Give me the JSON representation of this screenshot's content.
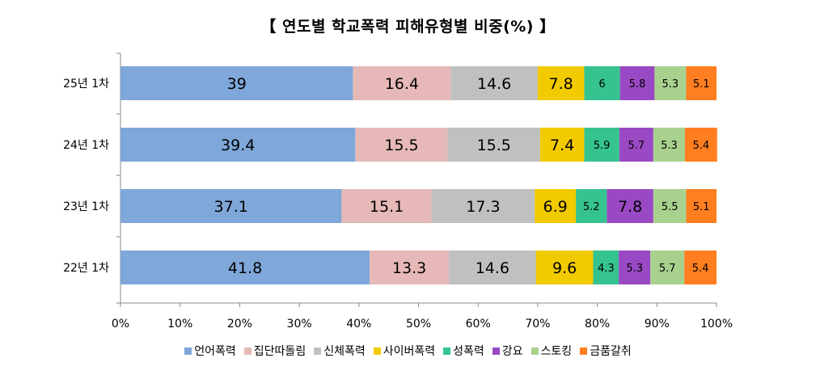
{
  "chart_data": {
    "type": "bar",
    "orientation": "horizontal",
    "stacked": true,
    "title": "【 연도별 학교폭력 피해유형별 비중(%) 】",
    "categories": [
      "25년 1차",
      "24년 1차",
      "23년 1차",
      "22년 1차"
    ],
    "series": [
      {
        "name": "언어폭력",
        "color": "#7FA7D9",
        "values": [
          39,
          39.4,
          37.1,
          41.8
        ]
      },
      {
        "name": "집단따돌림",
        "color": "#E6B9B8",
        "values": [
          16.4,
          15.5,
          15.1,
          13.3
        ]
      },
      {
        "name": "신체폭력",
        "color": "#C0C0C0",
        "values": [
          14.6,
          15.5,
          17.3,
          14.6
        ]
      },
      {
        "name": "사이버폭력",
        "color": "#F2CA00",
        "values": [
          7.8,
          7.4,
          6.9,
          9.6
        ]
      },
      {
        "name": "성폭력",
        "color": "#35C38F",
        "values": [
          6,
          5.9,
          5.2,
          4.3
        ]
      },
      {
        "name": "강요",
        "color": "#9A49C4",
        "values": [
          5.8,
          5.7,
          7.8,
          5.3
        ]
      },
      {
        "name": "스토킹",
        "color": "#A9D18E",
        "values": [
          5.3,
          5.3,
          5.5,
          5.7
        ]
      },
      {
        "name": "금품갈취",
        "color": "#FF7E1F",
        "values": [
          5.1,
          5.4,
          5.1,
          5.4
        ]
      }
    ],
    "xlim": [
      0,
      100
    ],
    "xticks": [
      "0%",
      "10%",
      "20%",
      "30%",
      "40%",
      "50%",
      "60%",
      "70%",
      "80%",
      "90%",
      "100%"
    ],
    "legend_position": "bottom",
    "grid": false
  }
}
